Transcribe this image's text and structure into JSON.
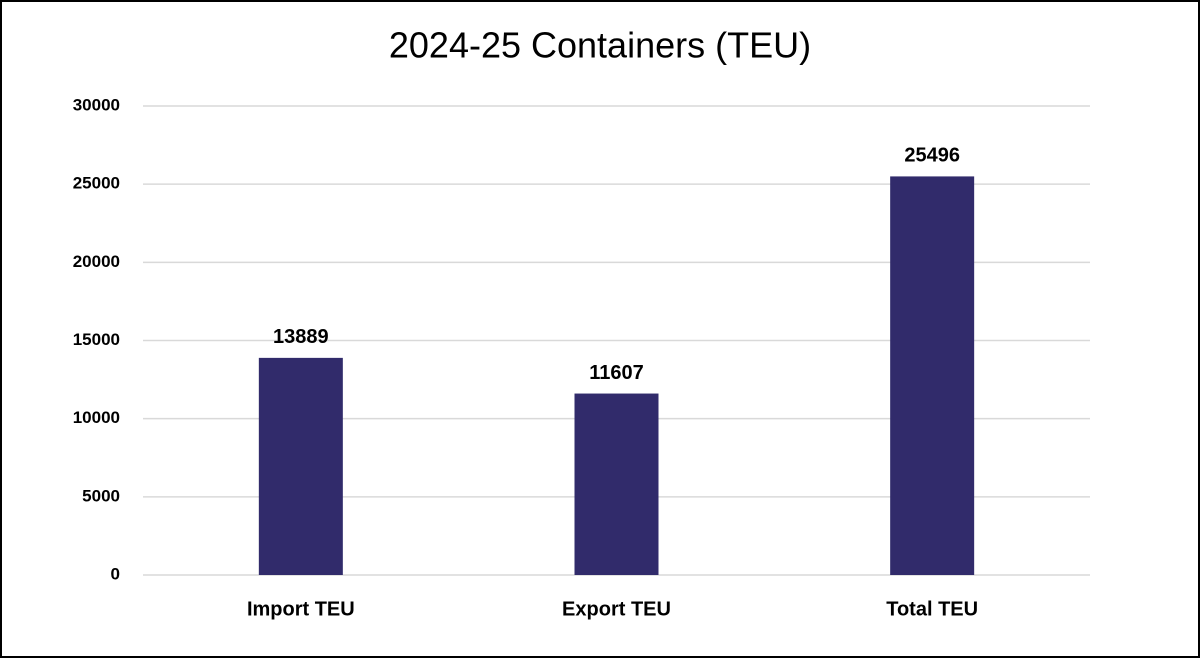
{
  "chart_data": {
    "type": "bar",
    "title": "2024-25 Containers (TEU)",
    "categories": [
      "Import TEU",
      "Export TEU",
      "Total TEU"
    ],
    "values": [
      13889,
      11607,
      25496
    ],
    "color": "#312b6b",
    "ylim": [
      0,
      30000
    ],
    "yticks": [
      0,
      5000,
      10000,
      15000,
      20000,
      25000,
      30000
    ],
    "grid": true,
    "data_labels": true
  }
}
